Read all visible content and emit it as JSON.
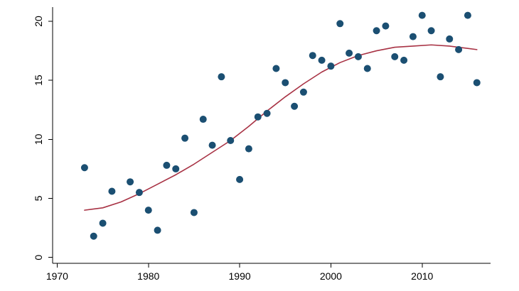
{
  "chart_data": {
    "type": "scatter",
    "title": "",
    "xlabel": "",
    "ylabel": "",
    "xlim": [
      1969.5,
      2017.5
    ],
    "ylim": [
      -0.5,
      21.2
    ],
    "grid": false,
    "x_ticks": [
      "1970",
      "1980",
      "1990",
      "2000",
      "2010"
    ],
    "y_ticks": [
      "0",
      "5",
      "10",
      "15",
      "20"
    ],
    "colors": {
      "points": "#1b4f72",
      "fit_line": "#a83244",
      "axes": "#000000",
      "background": "#ffffff"
    },
    "series": [
      {
        "type": "scatter",
        "x": [
          1973,
          1974,
          1975,
          1976,
          1978,
          1979,
          1980,
          1981,
          1982,
          1983,
          1984,
          1985,
          1986,
          1987,
          1988,
          1989,
          1990,
          1991,
          1992,
          1993,
          1994,
          1995,
          1996,
          1997,
          1998,
          1999,
          2000,
          2001,
          2002,
          2003,
          2004,
          2005,
          2006,
          2007,
          2008,
          2009,
          2010,
          2011,
          2012,
          2013,
          2014,
          2015,
          2016
        ],
        "y": [
          7.6,
          1.8,
          2.9,
          5.6,
          6.4,
          5.5,
          4.0,
          2.3,
          7.8,
          7.5,
          10.1,
          3.8,
          11.7,
          9.5,
          15.3,
          9.9,
          6.6,
          9.2,
          11.9,
          12.2,
          16.0,
          14.8,
          12.8,
          14.0,
          17.1,
          16.7,
          16.2,
          19.8,
          17.3,
          17.0,
          16.0,
          19.2,
          19.6,
          17.0,
          16.7,
          18.7,
          20.5,
          19.2,
          15.3,
          18.5,
          17.6,
          20.5,
          14.8
        ]
      },
      {
        "type": "line",
        "x": [
          1973,
          1975,
          1977,
          1979,
          1981,
          1983,
          1985,
          1987,
          1989,
          1991,
          1993,
          1995,
          1997,
          1999,
          2001,
          2003,
          2005,
          2007,
          2009,
          2011,
          2013,
          2015,
          2016
        ],
        "y": [
          4.0,
          4.2,
          4.7,
          5.4,
          6.2,
          7.0,
          7.9,
          8.9,
          9.9,
          11.1,
          12.4,
          13.6,
          14.7,
          15.7,
          16.5,
          17.1,
          17.5,
          17.8,
          17.9,
          18.0,
          17.9,
          17.7,
          17.6
        ]
      }
    ]
  }
}
